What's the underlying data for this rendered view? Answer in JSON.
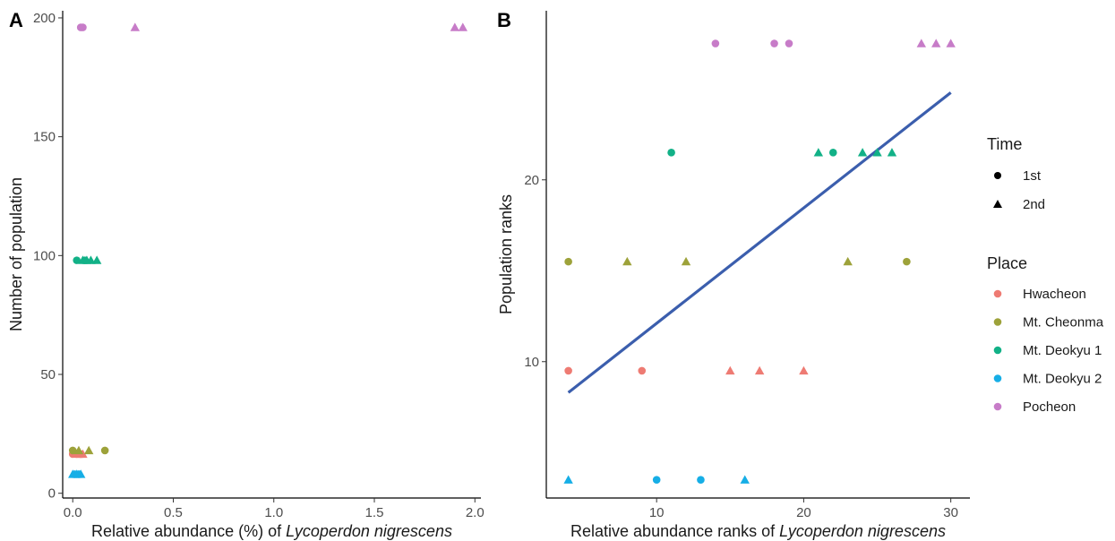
{
  "chart_data": [
    {
      "type": "scatter",
      "panel_label": "A",
      "xlabel_prefix": "Relative abundance (%) of ",
      "xlabel_italic": "Lycoperdon nigrescens",
      "ylabel": "Number of population",
      "xlim": [
        -0.05,
        2.03
      ],
      "ylim": [
        -2,
        203
      ],
      "xticks": [
        0.0,
        0.5,
        1.0,
        1.5,
        2.0
      ],
      "xtick_labels": [
        "0.0",
        "0.5",
        "1.0",
        "1.5",
        "2.0"
      ],
      "yticks": [
        0,
        50,
        100,
        150,
        200
      ],
      "ytick_labels": [
        "0",
        "50",
        "100",
        "150",
        "200"
      ],
      "grid": false,
      "series": [
        {
          "place": "Hwacheon",
          "time": "1st",
          "points": [
            [
              0.0,
              16.5
            ],
            [
              0.02,
              16.5
            ],
            [
              0.04,
              16.5
            ]
          ]
        },
        {
          "place": "Hwacheon",
          "time": "2nd",
          "points": [
            [
              0.03,
              16.5
            ],
            [
              0.05,
              16.5
            ]
          ]
        },
        {
          "place": "Mt. Cheonma",
          "time": "1st",
          "points": [
            [
              0.0,
              18
            ],
            [
              0.16,
              18
            ]
          ]
        },
        {
          "place": "Mt. Cheonma",
          "time": "2nd",
          "points": [
            [
              0.03,
              18
            ],
            [
              0.08,
              18
            ]
          ]
        },
        {
          "place": "Mt. Deokyu 1",
          "time": "1st",
          "points": [
            [
              0.02,
              98
            ],
            [
              0.06,
              98
            ]
          ]
        },
        {
          "place": "Mt. Deokyu 1",
          "time": "2nd",
          "points": [
            [
              0.05,
              98
            ],
            [
              0.07,
              98
            ],
            [
              0.09,
              98
            ],
            [
              0.12,
              98
            ]
          ]
        },
        {
          "place": "Mt. Deokyu 2",
          "time": "1st",
          "points": [
            [
              0.01,
              8
            ],
            [
              0.03,
              8
            ]
          ]
        },
        {
          "place": "Mt. Deokyu 2",
          "time": "2nd",
          "points": [
            [
              0.0,
              8
            ],
            [
              0.02,
              8
            ],
            [
              0.04,
              8
            ]
          ]
        },
        {
          "place": "Pocheon",
          "time": "1st",
          "points": [
            [
              0.04,
              196
            ],
            [
              0.05,
              196
            ]
          ]
        },
        {
          "place": "Pocheon",
          "time": "2nd",
          "points": [
            [
              0.31,
              196
            ],
            [
              1.9,
              196
            ],
            [
              1.94,
              196
            ]
          ]
        }
      ]
    },
    {
      "type": "scatter",
      "panel_label": "B",
      "xlabel_prefix": "Relative abundance ranks of ",
      "xlabel_italic": "Lycoperdon nigrescens",
      "ylabel": "Population ranks",
      "xlim": [
        2.5,
        31.3
      ],
      "ylim": [
        2.5,
        29.3
      ],
      "xticks": [
        10,
        20,
        30
      ],
      "xtick_labels": [
        "10",
        "20",
        "30"
      ],
      "yticks": [
        10,
        20
      ],
      "ytick_labels": [
        "10",
        "20"
      ],
      "grid": false,
      "trend_line": {
        "x": [
          4,
          30
        ],
        "y": [
          8.3,
          24.8
        ],
        "color": "#3b5ead"
      },
      "series": [
        {
          "place": "Hwacheon",
          "time": "1st",
          "points": [
            [
              4,
              9.5
            ],
            [
              9,
              9.5
            ]
          ]
        },
        {
          "place": "Hwacheon",
          "time": "2nd",
          "points": [
            [
              15,
              9.5
            ],
            [
              17,
              9.5
            ],
            [
              20,
              9.5
            ]
          ]
        },
        {
          "place": "Mt. Cheonma",
          "time": "1st",
          "points": [
            [
              4,
              15.5
            ],
            [
              27,
              15.5
            ]
          ]
        },
        {
          "place": "Mt. Cheonma",
          "time": "2nd",
          "points": [
            [
              8,
              15.5
            ],
            [
              12,
              15.5
            ],
            [
              23,
              15.5
            ]
          ]
        },
        {
          "place": "Mt. Deokyu 1",
          "time": "1st",
          "points": [
            [
              11,
              21.5
            ],
            [
              22,
              21.5
            ]
          ]
        },
        {
          "place": "Mt. Deokyu 1",
          "time": "2nd",
          "points": [
            [
              21,
              21.5
            ],
            [
              24,
              21.5
            ],
            [
              25,
              21.5
            ],
            [
              26,
              21.5
            ]
          ]
        },
        {
          "place": "Mt. Deokyu 2",
          "time": "1st",
          "points": [
            [
              10,
              3.5
            ],
            [
              13,
              3.5
            ]
          ]
        },
        {
          "place": "Mt. Deokyu 2",
          "time": "2nd",
          "points": [
            [
              4,
              3.5
            ],
            [
              16,
              3.5
            ]
          ]
        },
        {
          "place": "Pocheon",
          "time": "1st",
          "points": [
            [
              14,
              27.5
            ],
            [
              18,
              27.5
            ],
            [
              19,
              27.5
            ]
          ]
        },
        {
          "place": "Pocheon",
          "time": "2nd",
          "points": [
            [
              28,
              27.5
            ],
            [
              29,
              27.5
            ],
            [
              30,
              27.5
            ]
          ]
        }
      ]
    }
  ],
  "legend": {
    "time_title": "Time",
    "time_items": [
      {
        "label": "1st",
        "shape": "circle"
      },
      {
        "label": "2nd",
        "shape": "triangle"
      }
    ],
    "place_title": "Place",
    "place_items": [
      {
        "label": "Hwacheon",
        "color": "#f8766d"
      },
      {
        "label": "Mt. Cheonma",
        "color": "#a3a500"
      },
      {
        "label": "Mt. Deokyu 1",
        "color": "#00bf7d"
      },
      {
        "label": "Mt. Deokyu 2",
        "color": "#00b0f6"
      },
      {
        "label": "Pocheon",
        "color": "#e76bf3"
      }
    ]
  },
  "colors": {
    "Hwacheon": "#ee7b73",
    "Mt. Cheonma": "#9da23a",
    "Mt. Deokyu 1": "#12b187",
    "Mt. Deokyu 2": "#16aee6",
    "Pocheon": "#c77cc8",
    "trend": "#3b5ead"
  }
}
